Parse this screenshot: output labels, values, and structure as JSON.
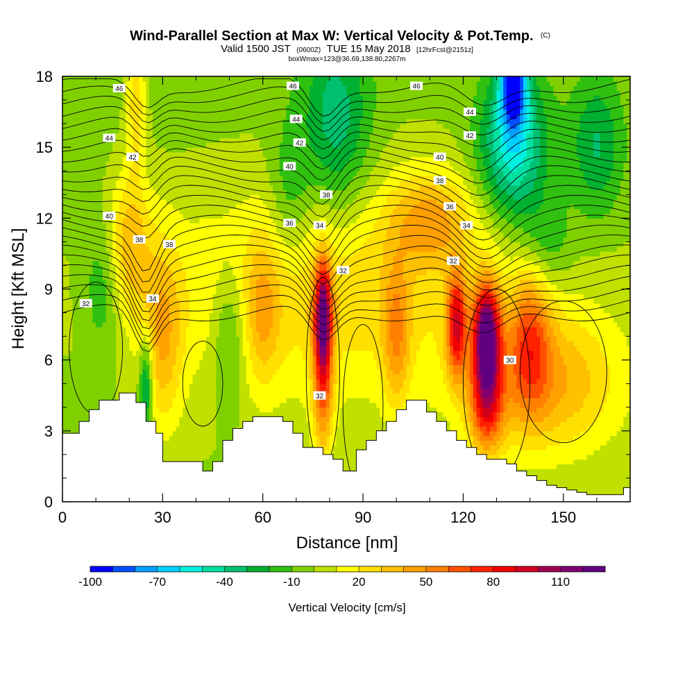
{
  "header": {
    "title": "Wind-Parallel Section at Max W: Vertical Velocity & Pot.Temp.",
    "title_suffix": "(C)",
    "valid_prefix": "Valid 1500 JST",
    "valid_zulu": "(0600Z)",
    "valid_date": "TUE 15 May 2018",
    "forecast": "[12hrFcst@2151z]",
    "box_info": "boxWmax=123@36.69,138.80,2267m"
  },
  "chart_data": {
    "type": "heatmap",
    "title": "Wind-Parallel Section at Max W: Vertical Velocity & Pot.Temp.",
    "xlabel": "Distance [nm]",
    "ylabel": "Height [Kft MSL]",
    "xlim": [
      0,
      170
    ],
    "ylim": [
      0,
      18
    ],
    "x_ticks": [
      "0",
      "30",
      "60",
      "90",
      "120",
      "150"
    ],
    "x_tick_values": [
      0,
      30,
      60,
      90,
      120,
      150
    ],
    "y_ticks": [
      "0",
      "3",
      "6",
      "9",
      "12",
      "15",
      "18"
    ],
    "y_tick_values": [
      0,
      3,
      6,
      9,
      12,
      15,
      18
    ],
    "colorbar": {
      "label": "Vertical Velocity [cm/s]",
      "min": -100,
      "max": 125,
      "step": 10,
      "tick_labels": [
        "-100",
        "-70",
        "-40",
        "-10",
        "20",
        "50",
        "80",
        "110"
      ],
      "tick_values": [
        -100,
        -70,
        -40,
        -10,
        20,
        50,
        80,
        110
      ],
      "colors": [
        "#0000ff",
        "#0050ff",
        "#00a0ff",
        "#00d0ff",
        "#00f0e0",
        "#00e0a0",
        "#00c070",
        "#00b030",
        "#30c010",
        "#80d000",
        "#c0e000",
        "#ffff00",
        "#ffe000",
        "#ffc000",
        "#ffa000",
        "#ff8000",
        "#ff5000",
        "#ff2000",
        "#f00000",
        "#d00020",
        "#a00050",
        "#800070",
        "#600080"
      ]
    },
    "terrain_profile": {
      "x": [
        0,
        5,
        5,
        8,
        8,
        11,
        11,
        17,
        17,
        22,
        22,
        25,
        25,
        28,
        28,
        30,
        30,
        42,
        42,
        45,
        45,
        48,
        48,
        51,
        51,
        54,
        54,
        57,
        57,
        66,
        66,
        69,
        69,
        72,
        72,
        78,
        78,
        81,
        81,
        84,
        84,
        88,
        88,
        91,
        91,
        94,
        94,
        97,
        97,
        100,
        100,
        103,
        103,
        109,
        109,
        112,
        112,
        115,
        115,
        118,
        118,
        121,
        121,
        124,
        124,
        127,
        127,
        133,
        133,
        136,
        136,
        139,
        139,
        142,
        142,
        145,
        145,
        148,
        148,
        151,
        151,
        154,
        154,
        157,
        157,
        168,
        168,
        170
      ],
      "y": [
        2.9,
        2.9,
        3.4,
        3.4,
        3.9,
        3.9,
        4.3,
        4.3,
        4.6,
        4.6,
        4.2,
        4.2,
        3.4,
        3.4,
        2.9,
        2.9,
        1.7,
        1.7,
        1.3,
        1.3,
        1.7,
        1.7,
        2.6,
        2.6,
        3.1,
        3.1,
        3.4,
        3.4,
        3.6,
        3.6,
        3.4,
        3.4,
        2.9,
        2.9,
        2.3,
        2.3,
        2.0,
        2.0,
        1.8,
        1.8,
        1.3,
        1.3,
        2.2,
        2.2,
        2.6,
        2.6,
        3.0,
        3.0,
        3.4,
        3.4,
        3.9,
        3.9,
        4.3,
        4.3,
        3.8,
        3.8,
        3.4,
        3.4,
        3.0,
        3.0,
        2.6,
        2.6,
        2.3,
        2.3,
        2.0,
        2.0,
        1.8,
        1.8,
        1.6,
        1.6,
        1.3,
        1.3,
        1.1,
        1.1,
        0.9,
        0.9,
        0.7,
        0.7,
        0.6,
        0.6,
        0.5,
        0.5,
        0.4,
        0.4,
        0.3,
        0.3,
        0.6,
        0.6
      ]
    },
    "vertical_velocity_features": [
      {
        "x": 0,
        "z": 18,
        "w": -5,
        "dx": 170,
        "dz": 20
      },
      {
        "x": 80,
        "z": 9,
        "w": 30,
        "dx": 60,
        "dz": 5
      },
      {
        "x": 145,
        "z": 5,
        "w": 40,
        "dx": 22,
        "dz": 3
      },
      {
        "x": 78,
        "z": 8,
        "w": 95,
        "dx": 2.5,
        "dz": 2.2
      },
      {
        "x": 78,
        "z": 5,
        "w": 55,
        "dx": 3,
        "dz": 3
      },
      {
        "x": 118,
        "z": 7.5,
        "w": 75,
        "dx": 3,
        "dz": 2.2
      },
      {
        "x": 127,
        "z": 7,
        "w": 120,
        "dx": 4,
        "dz": 2.2
      },
      {
        "x": 127,
        "z": 4,
        "w": 60,
        "dx": 5,
        "dz": 2
      },
      {
        "x": 100,
        "z": 7,
        "w": 35,
        "dx": 4,
        "dz": 3
      },
      {
        "x": 30,
        "z": 7,
        "w": 35,
        "dx": 6,
        "dz": 4
      },
      {
        "x": 140,
        "z": 7,
        "w": 45,
        "dx": 6,
        "dz": 3
      },
      {
        "x": 60,
        "z": 8,
        "w": 25,
        "dx": 5,
        "dz": 3
      },
      {
        "x": 110,
        "z": 12,
        "w": 35,
        "dx": 12,
        "dz": 2
      },
      {
        "x": 20,
        "z": 11,
        "w": 35,
        "dx": 6,
        "dz": 3
      },
      {
        "x": 22,
        "z": 17,
        "w": 30,
        "dx": 3,
        "dz": 3
      },
      {
        "x": 25,
        "z": 5,
        "w": -45,
        "dx": 2,
        "dz": 2
      },
      {
        "x": 50,
        "z": 7,
        "w": -25,
        "dx": 5,
        "dz": 3
      },
      {
        "x": 68,
        "z": 13,
        "w": -20,
        "dx": 6,
        "dz": 3
      },
      {
        "x": 12,
        "z": 9,
        "w": -20,
        "dx": 6,
        "dz": 3
      },
      {
        "x": 82,
        "z": 16,
        "w": -35,
        "dx": 10,
        "dz": 4
      },
      {
        "x": 135,
        "z": 15,
        "w": -55,
        "dx": 10,
        "dz": 3
      },
      {
        "x": 135,
        "z": 18,
        "w": -95,
        "dx": 4,
        "dz": 2
      },
      {
        "x": 160,
        "z": 15,
        "w": -30,
        "dx": 8,
        "dz": 3
      },
      {
        "x": 145,
        "z": 11,
        "w": -20,
        "dx": 8,
        "dz": 2
      }
    ],
    "isentrope_labels": [
      {
        "text": "46",
        "x": 17,
        "y": 17.5
      },
      {
        "text": "46",
        "x": 69,
        "y": 17.6
      },
      {
        "text": "46",
        "x": 106,
        "y": 17.6
      },
      {
        "text": "44",
        "x": 14,
        "y": 15.4
      },
      {
        "text": "44",
        "x": 70,
        "y": 16.2
      },
      {
        "text": "44",
        "x": 122,
        "y": 16.5
      },
      {
        "text": "42",
        "x": 21,
        "y": 14.6
      },
      {
        "text": "42",
        "x": 71,
        "y": 15.2
      },
      {
        "text": "42",
        "x": 122,
        "y": 15.5
      },
      {
        "text": "40",
        "x": 14,
        "y": 12.1
      },
      {
        "text": "40",
        "x": 68,
        "y": 14.2
      },
      {
        "text": "40",
        "x": 113,
        "y": 14.6
      },
      {
        "text": "38",
        "x": 79,
        "y": 13.0
      },
      {
        "text": "38",
        "x": 113,
        "y": 13.6
      },
      {
        "text": "38",
        "x": 23,
        "y": 11.1
      },
      {
        "text": "38",
        "x": 32,
        "y": 10.9
      },
      {
        "text": "36",
        "x": 68,
        "y": 11.8
      },
      {
        "text": "36",
        "x": 116,
        "y": 12.5
      },
      {
        "text": "34",
        "x": 77,
        "y": 11.7
      },
      {
        "text": "34",
        "x": 121,
        "y": 11.7
      },
      {
        "text": "34",
        "x": 27,
        "y": 8.6
      },
      {
        "text": "32",
        "x": 84,
        "y": 9.8
      },
      {
        "text": "32",
        "x": 117,
        "y": 10.2
      },
      {
        "text": "32",
        "x": 7,
        "y": 8.4
      },
      {
        "text": "32",
        "x": 77,
        "y": 4.5
      },
      {
        "text": "30",
        "x": 134,
        "y": 6.0
      }
    ]
  }
}
